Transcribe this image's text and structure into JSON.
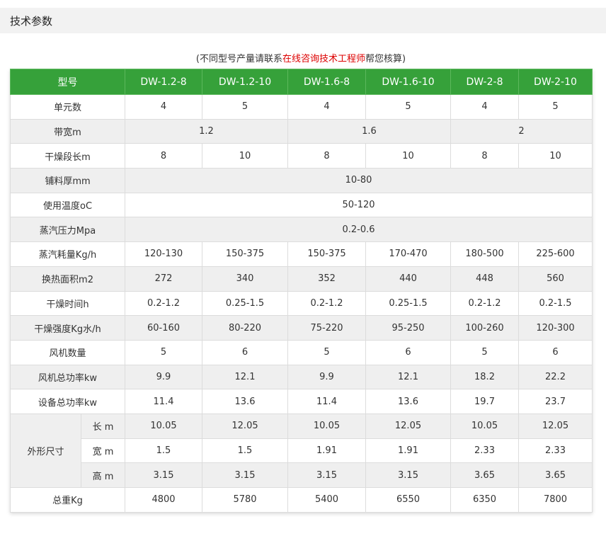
{
  "title": "技术参数",
  "note": {
    "prefix": "(不同型号产量请联系",
    "link": "在线咨询技术工程师",
    "suffix": "帮您核算)"
  },
  "header": [
    "型号",
    "DW-1.2-8",
    "DW-1.2-10",
    "DW-1.6-8",
    "DW-1.6-10",
    "DW-2-8",
    "DW-2-10"
  ],
  "rows": {
    "units": {
      "label": "单元数",
      "values": [
        "4",
        "5",
        "4",
        "5",
        "4",
        "5"
      ]
    },
    "belt_width": {
      "label": "带宽m",
      "values": [
        "1.2",
        "1.6",
        "2"
      ]
    },
    "dry_length": {
      "label": "干燥段长m",
      "values": [
        "8",
        "10",
        "8",
        "10",
        "8",
        "10"
      ]
    },
    "thickness": {
      "label": "铺料厚mm",
      "value": "10-80"
    },
    "temp": {
      "label": "使用温度oC",
      "value": "50-120"
    },
    "pressure": {
      "label": "蒸汽压力Mpa",
      "value": "0.2-0.6"
    },
    "steam": {
      "label": "蒸汽耗量Kg/h",
      "values": [
        "120-130",
        "150-375",
        "150-375",
        "170-470",
        "180-500",
        "225-600"
      ]
    },
    "area": {
      "label": "换热面积m2",
      "values": [
        "272",
        "340",
        "352",
        "440",
        "448",
        "560"
      ]
    },
    "time": {
      "label": "干燥时间h",
      "values": [
        "0.2-1.2",
        "0.25-1.5",
        "0.2-1.2",
        "0.25-1.5",
        "0.2-1.2",
        "0.2-1.5"
      ]
    },
    "intensity": {
      "label": "干燥强度Kg水/h",
      "values": [
        "60-160",
        "80-220",
        "75-220",
        "95-250",
        "100-260",
        "120-300"
      ]
    },
    "fans": {
      "label": "风机数量",
      "values": [
        "5",
        "6",
        "5",
        "6",
        "5",
        "6"
      ]
    },
    "fan_power": {
      "label": "风机总功率kw",
      "values": [
        "9.9",
        "12.1",
        "9.9",
        "12.1",
        "18.2",
        "22.2"
      ]
    },
    "total_power": {
      "label": "设备总功率kw",
      "values": [
        "11.4",
        "13.6",
        "11.4",
        "13.6",
        "19.7",
        "23.7"
      ]
    },
    "dims": {
      "label": "外形尺寸",
      "length": {
        "label": "长 m",
        "values": [
          "10.05",
          "12.05",
          "10.05",
          "12.05",
          "10.05",
          "12.05"
        ]
      },
      "width": {
        "label": "宽 m",
        "values": [
          "1.5",
          "1.5",
          "1.91",
          "1.91",
          "2.33",
          "2.33"
        ]
      },
      "height": {
        "label": "高 m",
        "values": [
          "3.15",
          "3.15",
          "3.15",
          "3.15",
          "3.65",
          "3.65"
        ]
      }
    },
    "weight": {
      "label": "总重Kg",
      "values": [
        "4800",
        "5780",
        "5400",
        "6550",
        "6350",
        "7800"
      ]
    }
  },
  "colors": {
    "header_bg": "#36a13a",
    "stripe": "#efefef",
    "link": "#dd0000"
  }
}
